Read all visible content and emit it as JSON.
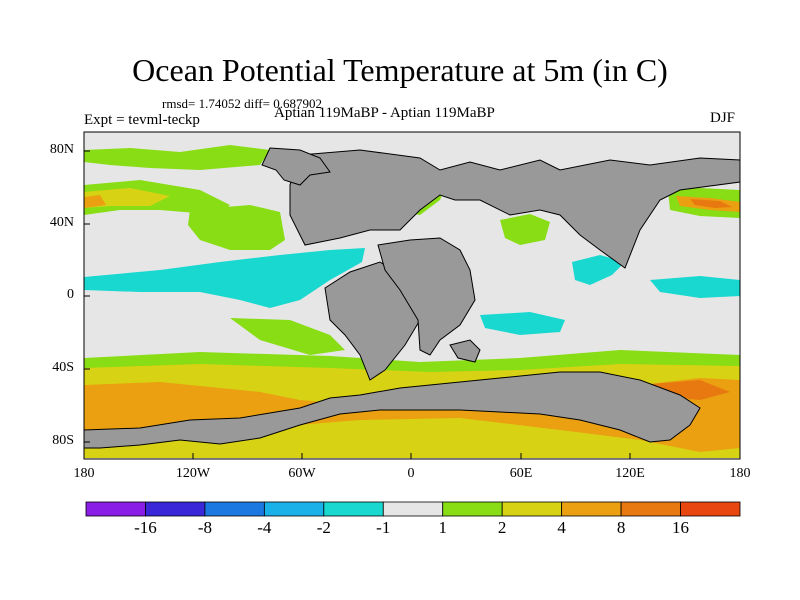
{
  "title": "Ocean Potential Temperature at 5m (in C)",
  "stats": "rmsd= 1.74052 diff= 0.687902",
  "experiment_label": "Expt = tevml-teckp",
  "experiment_name": "Aptian   119MaBP - Aptian   119MaBP",
  "season": "DJF",
  "lat_labels": [
    "80N",
    "40N",
    "0",
    "40S",
    "80S"
  ],
  "lon_labels": [
    "180",
    "120W",
    "60W",
    "0",
    "60E",
    "120E",
    "180"
  ],
  "colorbar": {
    "labels": [
      "-16",
      "-8",
      "-4",
      "-2",
      "-1",
      "1",
      "2",
      "4",
      "8",
      "16"
    ],
    "colors": [
      "#8a1ee6",
      "#3a28d8",
      "#1a78e0",
      "#1ab0e8",
      "#19d8d0",
      "#e6e6e6",
      "#88dd14",
      "#d8d214",
      "#eaa010",
      "#e87810",
      "#e84810"
    ]
  },
  "map_colors": {
    "land": "#999999",
    "zero": "#e6e6e6"
  }
}
